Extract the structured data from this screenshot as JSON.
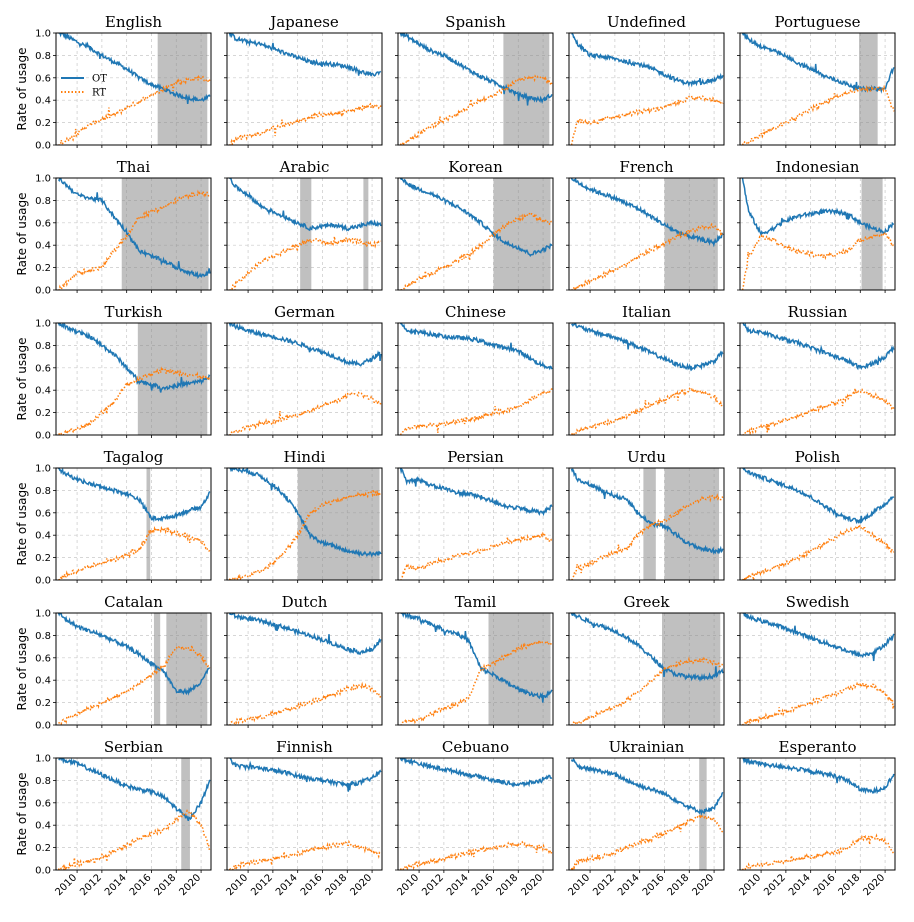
{
  "chart_data": {
    "type": "line",
    "layout": "6 rows x 5 columns of small multiples",
    "ylabel": "Rate of usage",
    "xlim": [
      2008.3,
      2020.8
    ],
    "ylim": [
      0,
      1
    ],
    "xticks": [
      2010,
      2012,
      2014,
      2016,
      2018,
      2020
    ],
    "xtick_labels": [
      "2010",
      "2012",
      "2014",
      "2016",
      "2018",
      "2020"
    ],
    "yticks": [
      0.0,
      0.2,
      0.4,
      0.6,
      0.8,
      1.0
    ],
    "ytick_labels": [
      "0.0",
      "0.2",
      "0.4",
      "0.6",
      "0.8",
      "1.0"
    ],
    "legend": {
      "location": "left, first panel",
      "entries": [
        {
          "label": "OT",
          "style": "solid",
          "color": "#1f77b4"
        },
        {
          "label": "RT",
          "style": "dotted",
          "color": "#ff7f0e"
        }
      ]
    },
    "colors": {
      "OT": "#1f77b4",
      "RT": "#ff7f0e",
      "shade": "#8c8c8c"
    },
    "x": [
      2008.5,
      2009,
      2010,
      2011,
      2012,
      2013,
      2014,
      2015,
      2016,
      2017,
      2018,
      2019,
      2020,
      2020.7
    ],
    "panels": [
      {
        "title": "English",
        "ot": [
          1.0,
          0.98,
          0.92,
          0.87,
          0.8,
          0.74,
          0.68,
          0.6,
          0.54,
          0.5,
          0.45,
          0.42,
          0.4,
          0.43
        ],
        "rt": [
          0.01,
          0.03,
          0.1,
          0.18,
          0.23,
          0.27,
          0.33,
          0.39,
          0.45,
          0.5,
          0.56,
          0.58,
          0.6,
          0.57
        ],
        "shade": [
          [
            2016.5,
            2020.5
          ]
        ]
      },
      {
        "title": "Japanese",
        "ot": [
          1.0,
          0.95,
          0.92,
          0.9,
          0.86,
          0.82,
          0.78,
          0.74,
          0.73,
          0.72,
          0.7,
          0.66,
          0.62,
          0.66
        ],
        "rt": [
          0.0,
          0.05,
          0.08,
          0.1,
          0.15,
          0.18,
          0.21,
          0.25,
          0.27,
          0.28,
          0.3,
          0.33,
          0.35,
          0.34
        ],
        "shade": []
      },
      {
        "title": "Spanish",
        "ot": [
          1.0,
          0.97,
          0.9,
          0.84,
          0.8,
          0.74,
          0.67,
          0.61,
          0.56,
          0.51,
          0.45,
          0.42,
          0.4,
          0.45
        ],
        "rt": [
          0.0,
          0.03,
          0.1,
          0.17,
          0.22,
          0.28,
          0.34,
          0.4,
          0.45,
          0.5,
          0.58,
          0.6,
          0.6,
          0.55
        ],
        "shade": [
          [
            2016.8,
            2020.5
          ]
        ]
      },
      {
        "title": "Undefined",
        "ot": [
          1.0,
          0.9,
          0.8,
          0.79,
          0.77,
          0.74,
          0.72,
          0.68,
          0.63,
          0.58,
          0.55,
          0.56,
          0.58,
          0.62
        ],
        "rt": [
          0.0,
          0.22,
          0.2,
          0.23,
          0.25,
          0.27,
          0.3,
          0.31,
          0.34,
          0.38,
          0.42,
          0.42,
          0.4,
          0.38
        ],
        "shade": []
      },
      {
        "title": "Portuguese",
        "ot": [
          1.0,
          0.94,
          0.88,
          0.84,
          0.79,
          0.73,
          0.68,
          0.62,
          0.58,
          0.54,
          0.5,
          0.5,
          0.5,
          0.7
        ],
        "rt": [
          0.0,
          0.03,
          0.09,
          0.15,
          0.2,
          0.26,
          0.32,
          0.37,
          0.43,
          0.47,
          0.5,
          0.5,
          0.5,
          0.3
        ],
        "shade": [
          [
            2017.9,
            2019.4
          ]
        ]
      },
      {
        "title": "Thai",
        "ot": [
          1.0,
          0.95,
          0.85,
          0.82,
          0.8,
          0.65,
          0.52,
          0.35,
          0.3,
          0.26,
          0.2,
          0.16,
          0.12,
          0.15
        ],
        "rt": [
          0.0,
          0.05,
          0.15,
          0.18,
          0.2,
          0.35,
          0.48,
          0.65,
          0.7,
          0.74,
          0.8,
          0.84,
          0.87,
          0.85
        ],
        "shade": [
          [
            2013.6,
            2020.6
          ]
        ]
      },
      {
        "title": "Arabic",
        "ot": [
          1.0,
          0.92,
          0.85,
          0.75,
          0.7,
          0.65,
          0.6,
          0.55,
          0.57,
          0.58,
          0.55,
          0.57,
          0.6,
          0.58
        ],
        "rt": [
          0.0,
          0.05,
          0.15,
          0.25,
          0.3,
          0.35,
          0.4,
          0.45,
          0.43,
          0.42,
          0.45,
          0.43,
          0.4,
          0.42
        ],
        "shade": [
          [
            2014.2,
            2015.1
          ],
          [
            2019.3,
            2019.7
          ]
        ]
      },
      {
        "title": "Korean",
        "ot": [
          1.0,
          0.95,
          0.9,
          0.86,
          0.8,
          0.75,
          0.68,
          0.6,
          0.5,
          0.42,
          0.38,
          0.32,
          0.36,
          0.4
        ],
        "rt": [
          0.0,
          0.03,
          0.1,
          0.15,
          0.2,
          0.26,
          0.32,
          0.4,
          0.5,
          0.58,
          0.64,
          0.68,
          0.62,
          0.6
        ],
        "shade": [
          [
            2016.0,
            2020.6
          ]
        ]
      },
      {
        "title": "French",
        "ot": [
          1.0,
          0.96,
          0.9,
          0.86,
          0.82,
          0.77,
          0.72,
          0.65,
          0.58,
          0.52,
          0.48,
          0.45,
          0.42,
          0.5
        ],
        "rt": [
          0.0,
          0.03,
          0.08,
          0.13,
          0.18,
          0.23,
          0.3,
          0.36,
          0.42,
          0.48,
          0.52,
          0.56,
          0.58,
          0.5
        ],
        "shade": [
          [
            2016.0,
            2020.3
          ]
        ]
      },
      {
        "title": "Indonesian",
        "ot": [
          1.0,
          0.7,
          0.5,
          0.55,
          0.62,
          0.66,
          0.68,
          0.7,
          0.7,
          0.68,
          0.6,
          0.55,
          0.52,
          0.6
        ],
        "rt": [
          0.0,
          0.3,
          0.48,
          0.45,
          0.38,
          0.34,
          0.32,
          0.3,
          0.32,
          0.35,
          0.45,
          0.48,
          0.5,
          0.4
        ],
        "shade": [
          [
            2018.1,
            2019.8
          ]
        ]
      },
      {
        "title": "Turkish",
        "ot": [
          1.0,
          0.97,
          0.92,
          0.88,
          0.8,
          0.72,
          0.6,
          0.48,
          0.45,
          0.42,
          0.44,
          0.46,
          0.48,
          0.52
        ],
        "rt": [
          0.0,
          0.02,
          0.05,
          0.1,
          0.2,
          0.3,
          0.45,
          0.5,
          0.55,
          0.58,
          0.56,
          0.54,
          0.52,
          0.5
        ],
        "shade": [
          [
            2014.9,
            2020.5
          ]
        ]
      },
      {
        "title": "German",
        "ot": [
          1.0,
          0.97,
          0.93,
          0.9,
          0.88,
          0.85,
          0.82,
          0.78,
          0.74,
          0.7,
          0.65,
          0.63,
          0.68,
          0.74
        ],
        "rt": [
          0.0,
          0.03,
          0.07,
          0.1,
          0.12,
          0.15,
          0.18,
          0.22,
          0.26,
          0.3,
          0.35,
          0.37,
          0.32,
          0.28
        ],
        "shade": []
      },
      {
        "title": "Chinese",
        "ot": [
          1.0,
          0.94,
          0.92,
          0.9,
          0.88,
          0.87,
          0.86,
          0.84,
          0.8,
          0.78,
          0.75,
          0.68,
          0.62,
          0.6
        ],
        "rt": [
          0.0,
          0.06,
          0.08,
          0.09,
          0.1,
          0.12,
          0.14,
          0.16,
          0.2,
          0.22,
          0.25,
          0.32,
          0.38,
          0.4
        ],
        "shade": []
      },
      {
        "title": "Italian",
        "ot": [
          1.0,
          0.97,
          0.93,
          0.9,
          0.87,
          0.83,
          0.78,
          0.73,
          0.68,
          0.63,
          0.6,
          0.62,
          0.66,
          0.74
        ],
        "rt": [
          0.0,
          0.03,
          0.07,
          0.1,
          0.13,
          0.17,
          0.22,
          0.27,
          0.32,
          0.37,
          0.4,
          0.38,
          0.34,
          0.26
        ],
        "shade": []
      },
      {
        "title": "Russian",
        "ot": [
          1.0,
          0.93,
          0.92,
          0.88,
          0.85,
          0.82,
          0.78,
          0.74,
          0.7,
          0.66,
          0.6,
          0.64,
          0.7,
          0.78
        ],
        "rt": [
          0.0,
          0.03,
          0.07,
          0.1,
          0.13,
          0.17,
          0.21,
          0.25,
          0.29,
          0.33,
          0.4,
          0.36,
          0.3,
          0.24
        ],
        "shade": []
      },
      {
        "title": "Tagalog",
        "ot": [
          1.0,
          0.95,
          0.9,
          0.86,
          0.83,
          0.8,
          0.77,
          0.72,
          0.55,
          0.55,
          0.58,
          0.62,
          0.65,
          0.78
        ],
        "rt": [
          0.0,
          0.04,
          0.08,
          0.12,
          0.15,
          0.18,
          0.22,
          0.27,
          0.45,
          0.45,
          0.42,
          0.38,
          0.35,
          0.26
        ],
        "shade": [
          [
            2015.6,
            2015.9
          ]
        ]
      },
      {
        "title": "Hindi",
        "ot": [
          1.0,
          0.99,
          0.97,
          0.93,
          0.85,
          0.75,
          0.6,
          0.4,
          0.33,
          0.3,
          0.26,
          0.24,
          0.23,
          0.24
        ],
        "rt": [
          0.0,
          0.02,
          0.04,
          0.08,
          0.15,
          0.25,
          0.4,
          0.6,
          0.67,
          0.7,
          0.74,
          0.76,
          0.77,
          0.77
        ],
        "shade": [
          [
            2014.0,
            2020.6
          ]
        ]
      },
      {
        "title": "Persian",
        "ot": [
          1.0,
          0.88,
          0.9,
          0.84,
          0.82,
          0.78,
          0.77,
          0.74,
          0.7,
          0.66,
          0.64,
          0.62,
          0.6,
          0.66
        ],
        "rt": [
          0.0,
          0.12,
          0.1,
          0.15,
          0.18,
          0.22,
          0.24,
          0.26,
          0.3,
          0.34,
          0.36,
          0.38,
          0.4,
          0.34
        ],
        "shade": []
      },
      {
        "title": "Urdu",
        "ot": [
          1.0,
          0.9,
          0.85,
          0.8,
          0.75,
          0.72,
          0.58,
          0.5,
          0.48,
          0.4,
          0.32,
          0.28,
          0.26,
          0.27
        ],
        "rt": [
          0.0,
          0.1,
          0.15,
          0.2,
          0.25,
          0.28,
          0.42,
          0.5,
          0.52,
          0.6,
          0.68,
          0.72,
          0.74,
          0.73
        ],
        "shade": [
          [
            2014.3,
            2015.3
          ],
          [
            2016.0,
            2020.4
          ]
        ]
      },
      {
        "title": "Polish",
        "ot": [
          1.0,
          0.96,
          0.92,
          0.88,
          0.84,
          0.8,
          0.74,
          0.67,
          0.6,
          0.55,
          0.52,
          0.6,
          0.68,
          0.75
        ],
        "rt": [
          0.0,
          0.03,
          0.07,
          0.11,
          0.15,
          0.2,
          0.26,
          0.32,
          0.38,
          0.44,
          0.48,
          0.4,
          0.32,
          0.25
        ],
        "shade": []
      },
      {
        "title": "Catalan",
        "ot": [
          1.0,
          0.95,
          0.88,
          0.84,
          0.8,
          0.75,
          0.7,
          0.63,
          0.55,
          0.48,
          0.3,
          0.3,
          0.38,
          0.52
        ],
        "rt": [
          0.0,
          0.04,
          0.1,
          0.15,
          0.2,
          0.25,
          0.3,
          0.37,
          0.45,
          0.52,
          0.7,
          0.68,
          0.62,
          0.5
        ],
        "shade": [
          [
            2016.2,
            2016.7
          ],
          [
            2017.2,
            2020.5
          ]
        ]
      },
      {
        "title": "Dutch",
        "ot": [
          1.0,
          0.97,
          0.95,
          0.93,
          0.9,
          0.87,
          0.83,
          0.8,
          0.76,
          0.72,
          0.68,
          0.65,
          0.67,
          0.76
        ],
        "rt": [
          0.0,
          0.03,
          0.05,
          0.07,
          0.1,
          0.13,
          0.17,
          0.2,
          0.24,
          0.28,
          0.32,
          0.35,
          0.33,
          0.25
        ],
        "shade": []
      },
      {
        "title": "Tamil",
        "ot": [
          1.0,
          0.98,
          0.95,
          0.9,
          0.85,
          0.82,
          0.75,
          0.5,
          0.45,
          0.38,
          0.32,
          0.28,
          0.25,
          0.3
        ],
        "rt": [
          0.0,
          0.03,
          0.05,
          0.1,
          0.15,
          0.18,
          0.25,
          0.5,
          0.55,
          0.62,
          0.68,
          0.72,
          0.75,
          0.72
        ],
        "shade": [
          [
            2015.6,
            2020.6
          ]
        ]
      },
      {
        "title": "Greek",
        "ot": [
          1.0,
          0.97,
          0.92,
          0.88,
          0.84,
          0.78,
          0.7,
          0.6,
          0.5,
          0.45,
          0.43,
          0.42,
          0.44,
          0.48
        ],
        "rt": [
          0.0,
          0.02,
          0.07,
          0.12,
          0.16,
          0.22,
          0.3,
          0.4,
          0.5,
          0.55,
          0.57,
          0.58,
          0.56,
          0.52
        ],
        "shade": [
          [
            2015.8,
            2020.5
          ]
        ]
      },
      {
        "title": "Swedish",
        "ot": [
          1.0,
          0.96,
          0.93,
          0.9,
          0.86,
          0.82,
          0.78,
          0.74,
          0.7,
          0.66,
          0.62,
          0.64,
          0.72,
          0.8
        ],
        "rt": [
          0.0,
          0.03,
          0.06,
          0.09,
          0.12,
          0.16,
          0.2,
          0.24,
          0.28,
          0.32,
          0.36,
          0.35,
          0.28,
          0.2
        ],
        "shade": []
      },
      {
        "title": "Serbian",
        "ot": [
          1.0,
          0.98,
          0.95,
          0.9,
          0.85,
          0.8,
          0.75,
          0.72,
          0.7,
          0.65,
          0.55,
          0.45,
          0.6,
          0.8
        ],
        "rt": [
          0.0,
          0.02,
          0.05,
          0.08,
          0.12,
          0.17,
          0.22,
          0.28,
          0.32,
          0.36,
          0.45,
          0.52,
          0.4,
          0.18
        ],
        "shade": [
          [
            2018.4,
            2019.1
          ]
        ]
      },
      {
        "title": "Finnish",
        "ot": [
          1.0,
          0.93,
          0.92,
          0.91,
          0.89,
          0.87,
          0.84,
          0.82,
          0.8,
          0.78,
          0.76,
          0.78,
          0.82,
          0.88
        ],
        "rt": [
          0.0,
          0.03,
          0.06,
          0.08,
          0.1,
          0.12,
          0.15,
          0.18,
          0.2,
          0.22,
          0.24,
          0.2,
          0.17,
          0.13
        ],
        "shade": []
      },
      {
        "title": "Cebuano",
        "ot": [
          1.0,
          0.98,
          0.95,
          0.92,
          0.9,
          0.88,
          0.85,
          0.83,
          0.8,
          0.78,
          0.76,
          0.78,
          0.8,
          0.84
        ],
        "rt": [
          0.0,
          0.02,
          0.05,
          0.08,
          0.1,
          0.13,
          0.15,
          0.18,
          0.2,
          0.22,
          0.24,
          0.22,
          0.2,
          0.16
        ],
        "shade": []
      },
      {
        "title": "Ukrainian",
        "ot": [
          1.0,
          0.92,
          0.9,
          0.88,
          0.85,
          0.8,
          0.75,
          0.72,
          0.68,
          0.62,
          0.56,
          0.52,
          0.55,
          0.68
        ],
        "rt": [
          0.0,
          0.08,
          0.1,
          0.12,
          0.15,
          0.2,
          0.25,
          0.28,
          0.32,
          0.38,
          0.44,
          0.48,
          0.45,
          0.34
        ],
        "shade": [
          [
            2018.8,
            2019.4
          ]
        ]
      },
      {
        "title": "Esperanto",
        "ot": [
          1.0,
          0.97,
          0.95,
          0.93,
          0.92,
          0.9,
          0.88,
          0.86,
          0.84,
          0.8,
          0.72,
          0.7,
          0.74,
          0.85
        ],
        "rt": [
          0.0,
          0.03,
          0.05,
          0.07,
          0.08,
          0.1,
          0.12,
          0.14,
          0.16,
          0.2,
          0.28,
          0.3,
          0.26,
          0.15
        ],
        "shade": []
      }
    ]
  }
}
